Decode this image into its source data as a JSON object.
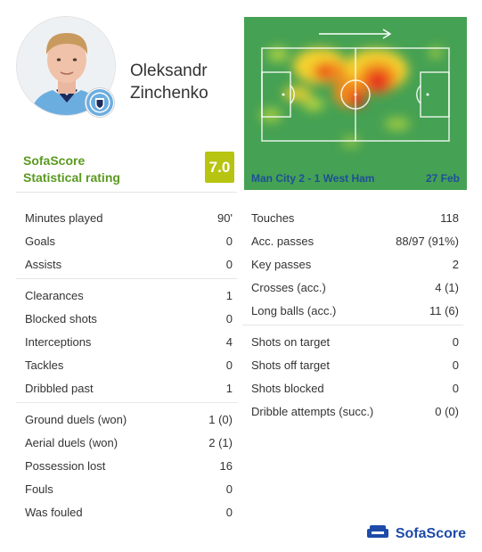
{
  "player": {
    "first_name": "Oleksandr",
    "last_name": "Zinchenko"
  },
  "rating": {
    "brand": "SofaScore",
    "label": "Statistical rating",
    "value": "7.0",
    "color": "#b7c411"
  },
  "heatmap": {
    "match": "Man City 2 - 1 West Ham",
    "date": "27 Feb",
    "pitch_color": "#45a153"
  },
  "left_stats": [
    [
      {
        "label": "Minutes played",
        "value": "90'"
      },
      {
        "label": "Goals",
        "value": "0"
      },
      {
        "label": "Assists",
        "value": "0"
      }
    ],
    [
      {
        "label": "Clearances",
        "value": "1"
      },
      {
        "label": "Blocked shots",
        "value": "0"
      },
      {
        "label": "Interceptions",
        "value": "4"
      },
      {
        "label": "Tackles",
        "value": "0"
      },
      {
        "label": "Dribbled past",
        "value": "1"
      }
    ],
    [
      {
        "label": "Ground duels (won)",
        "value": "1 (0)"
      },
      {
        "label": "Aerial duels (won)",
        "value": "2 (1)"
      },
      {
        "label": "Possession lost",
        "value": "16"
      },
      {
        "label": "Fouls",
        "value": "0"
      },
      {
        "label": "Was fouled",
        "value": "0"
      }
    ]
  ],
  "right_stats": [
    [
      {
        "label": "Touches",
        "value": "118"
      },
      {
        "label": "Acc. passes",
        "value": "88/97 (91%)"
      },
      {
        "label": "Key passes",
        "value": "2"
      },
      {
        "label": "Crosses (acc.)",
        "value": "4 (1)"
      },
      {
        "label": "Long balls (acc.)",
        "value": "11 (6)"
      }
    ],
    [
      {
        "label": "Shots on target",
        "value": "0"
      },
      {
        "label": "Shots off target",
        "value": "0"
      },
      {
        "label": "Shots blocked",
        "value": "0"
      },
      {
        "label": "Dribble attempts (succ.)",
        "value": "0 (0)"
      }
    ]
  ],
  "footer": {
    "brand": "SofaScore"
  },
  "icons": {
    "avatar": "player-photo-icon",
    "club_badge": "man-city-badge-icon",
    "attack_direction": "arrow-right-icon",
    "brand_logo": "sofascore-logo-icon"
  }
}
